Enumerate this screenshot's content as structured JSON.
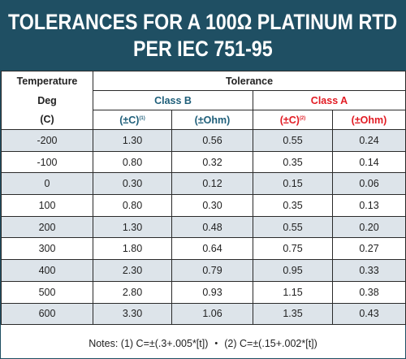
{
  "title": {
    "line1": "TOLERANCES FOR A 100Ω PLATINUM RTD",
    "line2": "PER IEC 751-95"
  },
  "headers": {
    "temperature_line1": "Temperature",
    "temperature_line2": "Deg",
    "temperature_line3": "(C)",
    "tolerance": "Tolerance",
    "class_b": "Class B",
    "class_a": "Class A",
    "class_b_c": "(±C)",
    "class_b_c_note": "(1)",
    "class_b_ohm": "(±Ohm)",
    "class_a_c": "(±C)",
    "class_a_c_note": "(2)",
    "class_a_ohm": "(±Ohm)"
  },
  "colors": {
    "title_bg": "#1f4f63",
    "row_stripe": "#dde4ea",
    "class_b_text": "#1f5f7a",
    "class_a_text": "#e21b23"
  },
  "rows": [
    {
      "temp": "-200",
      "b_c": "1.30",
      "b_ohm": "0.56",
      "a_c": "0.55",
      "a_ohm": "0.24"
    },
    {
      "temp": "-100",
      "b_c": "0.80",
      "b_ohm": "0.32",
      "a_c": "0.35",
      "a_ohm": "0.14"
    },
    {
      "temp": "0",
      "b_c": "0.30",
      "b_ohm": "0.12",
      "a_c": "0.15",
      "a_ohm": "0.06"
    },
    {
      "temp": "100",
      "b_c": "0.80",
      "b_ohm": "0.30",
      "a_c": "0.35",
      "a_ohm": "0.13"
    },
    {
      "temp": "200",
      "b_c": "1.30",
      "b_ohm": "0.48",
      "a_c": "0.55",
      "a_ohm": "0.20"
    },
    {
      "temp": "300",
      "b_c": "1.80",
      "b_ohm": "0.64",
      "a_c": "0.75",
      "a_ohm": "0.27"
    },
    {
      "temp": "400",
      "b_c": "2.30",
      "b_ohm": "0.79",
      "a_c": "0.95",
      "a_ohm": "0.33"
    },
    {
      "temp": "500",
      "b_c": "2.80",
      "b_ohm": "0.93",
      "a_c": "1.15",
      "a_ohm": "0.38"
    },
    {
      "temp": "600",
      "b_c": "3.30",
      "b_ohm": "1.06",
      "a_c": "1.35",
      "a_ohm": "0.43"
    }
  ],
  "notes": {
    "note1": "Notes: (1) C=±(.3+.005*[t])",
    "separator": "•",
    "note2": "(2) C=±(.15+.002*[t])"
  }
}
